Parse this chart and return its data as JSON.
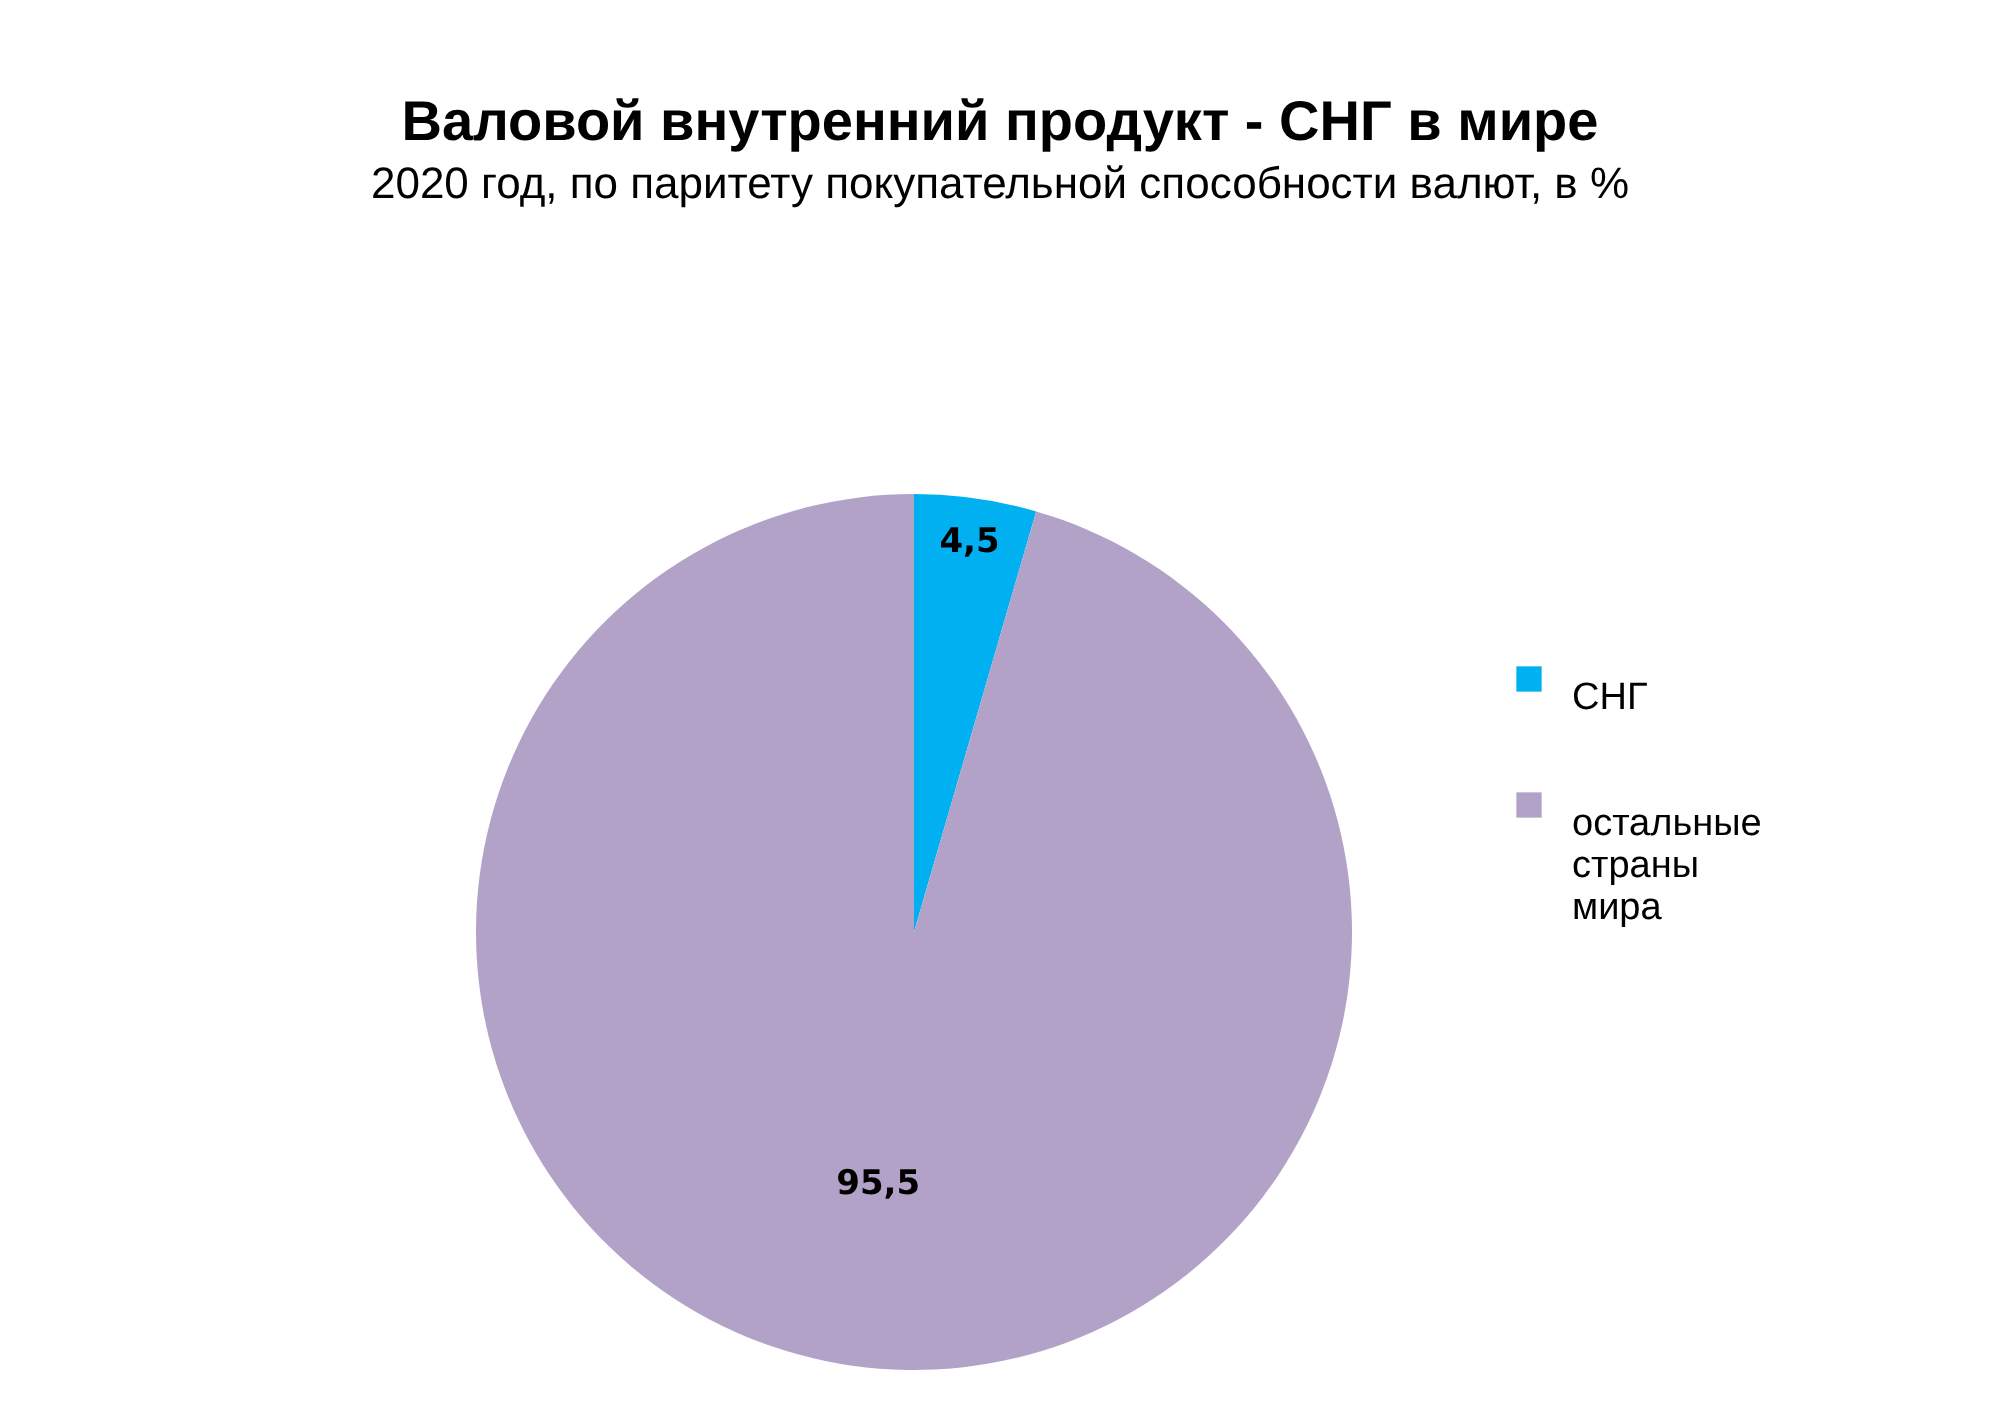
{
  "chart_data": {
    "type": "pie",
    "title": "Валовой внутренний продукт - СНГ в мире",
    "subtitle": "2020 год, по паритету покупательной способности валют, в %",
    "categories": [
      "СНГ",
      "остальные страны мира"
    ],
    "values": [
      4.5,
      95.5
    ],
    "value_labels": [
      "4,5",
      "95,5"
    ],
    "colors": [
      "#00b0f0",
      "#b3a2c7"
    ],
    "legend": "right"
  }
}
